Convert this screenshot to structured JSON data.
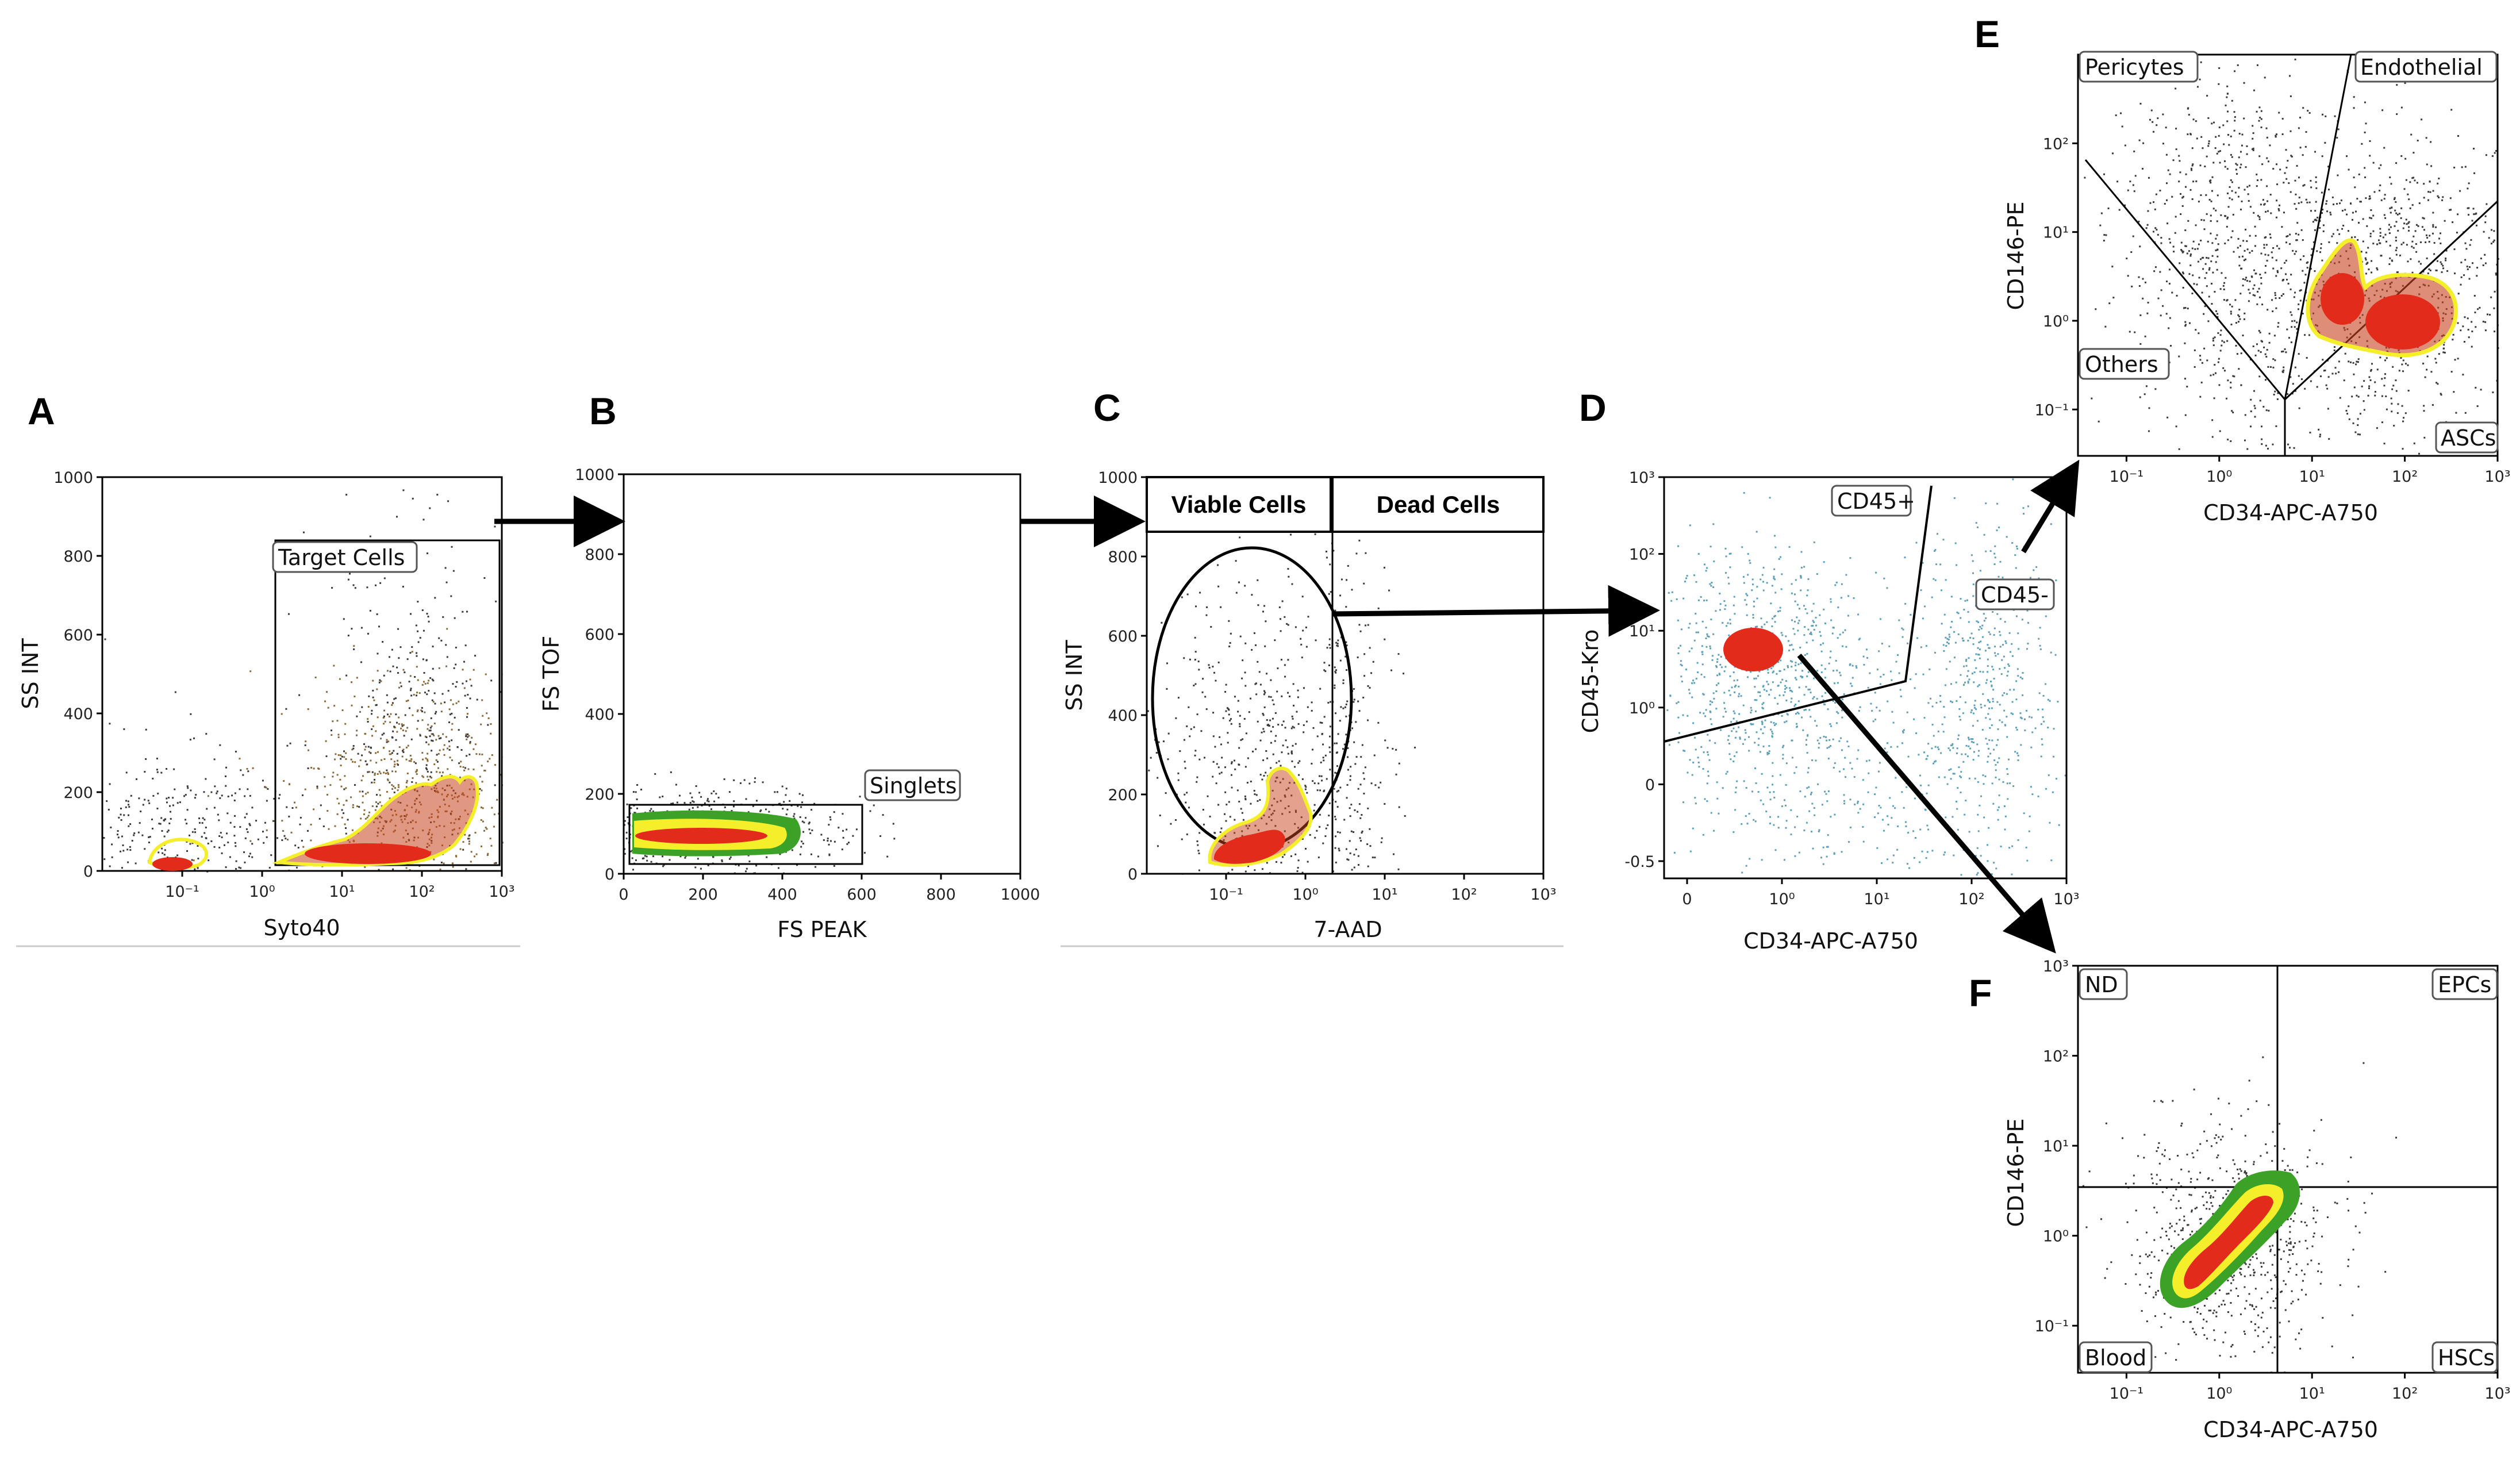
{
  "colors": {
    "density_low": "#3a3a3a",
    "density_mid": "#8a6a3a",
    "density_high": "#e32b1c",
    "contour_yellow": "#f4ef2a",
    "contour_green": "#3ca127",
    "cd45_scatter": "#5fa0b8"
  },
  "chart_data": [
    {
      "panel": "A",
      "type": "scatter",
      "title": "",
      "xlabel": "Syto40",
      "ylabel": "SS INT",
      "x_scale": "log",
      "x_ticks": [
        "10⁻¹",
        "10⁰",
        "10¹",
        "10²",
        "10³"
      ],
      "x_tick_values": [
        0.1,
        1,
        10,
        100,
        1000
      ],
      "y_ticks": [
        "0",
        "200",
        "400",
        "600",
        "800",
        "1000"
      ],
      "y_tick_values": [
        0,
        200,
        400,
        600,
        800,
        1000
      ],
      "xlim": [
        0.01,
        1000
      ],
      "ylim": [
        0,
        1000
      ],
      "gates": [
        {
          "label": "Target Cells",
          "shape": "rectangle",
          "x_range": [
            1.3,
            1000
          ],
          "y_range": [
            0,
            840
          ]
        }
      ],
      "populations": [
        {
          "center": [
            0.07,
            20
          ],
          "spread": [
            0.35,
            20
          ],
          "density": "high"
        },
        {
          "center": [
            40,
            80
          ],
          "spread": [
            0.5,
            80
          ],
          "density": "high"
        }
      ]
    },
    {
      "panel": "B",
      "type": "scatter",
      "title": "",
      "xlabel": "FS PEAK",
      "ylabel": "FS TOF",
      "x_ticks": [
        "0",
        "200",
        "400",
        "600",
        "800",
        "1000"
      ],
      "x_tick_values": [
        0,
        200,
        400,
        600,
        800,
        1000
      ],
      "y_ticks": [
        "0",
        "200",
        "400",
        "600",
        "800",
        "1000"
      ],
      "y_tick_values": [
        0,
        200,
        400,
        600,
        800,
        1000
      ],
      "xlim": [
        0,
        1000
      ],
      "ylim": [
        0,
        1000
      ],
      "gates": [
        {
          "label": "Singlets",
          "shape": "rectangle",
          "x_range": [
            20,
            600
          ],
          "y_range": [
            30,
            180
          ]
        }
      ],
      "populations": [
        {
          "center": [
            160,
            90
          ],
          "spread": [
            110,
            25
          ],
          "density": "high"
        }
      ]
    },
    {
      "panel": "C",
      "type": "scatter",
      "title": "",
      "xlabel": "7-AAD",
      "ylabel": "SS INT",
      "x_scale": "log",
      "x_ticks": [
        "10⁻¹",
        "10⁰",
        "10¹",
        "10²",
        "10³"
      ],
      "x_tick_values": [
        0.1,
        1,
        10,
        100,
        1000
      ],
      "y_ticks": [
        "0",
        "200",
        "400",
        "600",
        "800",
        "1000"
      ],
      "y_tick_values": [
        0,
        200,
        400,
        600,
        800,
        1000
      ],
      "xlim": [
        0.01,
        1000
      ],
      "ylim": [
        0,
        1000
      ],
      "gates": [
        {
          "label": "Viable Cells",
          "shape": "ellipse",
          "x_range": [
            0.01,
            2
          ],
          "y_range": [
            0,
            830
          ]
        },
        {
          "label": "Dead Cells",
          "shape": "rectangle",
          "x_range": [
            2,
            1000
          ],
          "y_range": [
            0,
            1000
          ]
        }
      ],
      "populations": [
        {
          "center": [
            0.25,
            80
          ],
          "spread": [
            0.4,
            90
          ],
          "density": "high"
        }
      ]
    },
    {
      "panel": "D",
      "type": "scatter",
      "title": "",
      "xlabel": "CD34-APC-A750",
      "ylabel": "CD45-Kro",
      "x_ticks": [
        "0",
        "10⁰",
        "10¹",
        "10²",
        "10³"
      ],
      "y_ticks": [
        "-0.5",
        "0",
        "10⁰",
        "10¹",
        "10²",
        "10³"
      ],
      "gates": [
        {
          "label": "CD45+",
          "shape": "polygon"
        },
        {
          "label": "CD45-",
          "shape": "polygon"
        }
      ],
      "populations": [
        {
          "center": [
            "0.3",
            "20"
          ],
          "density": "high"
        },
        {
          "center": [
            "300",
            "30"
          ],
          "density": "mid"
        }
      ]
    },
    {
      "panel": "E",
      "type": "scatter",
      "title": "",
      "xlabel": "CD34-APC-A750",
      "ylabel": "CD146-PE",
      "x_scale": "log",
      "y_scale": "log",
      "x_ticks": [
        "10⁻¹",
        "10⁰",
        "10¹",
        "10²",
        "10³"
      ],
      "x_tick_values": [
        0.1,
        1,
        10,
        100,
        1000
      ],
      "y_ticks": [
        "10⁻¹",
        "10⁰",
        "10¹",
        "10²"
      ],
      "y_tick_values": [
        0.1,
        1,
        10,
        100
      ],
      "xlim": [
        0.03,
        1000
      ],
      "ylim": [
        0.03,
        1000
      ],
      "gates": [
        {
          "label": "Pericytes",
          "shape": "polygon"
        },
        {
          "label": "Endothelial",
          "shape": "polygon"
        },
        {
          "label": "Others",
          "shape": "polygon"
        },
        {
          "label": "ASCs",
          "shape": "polygon"
        }
      ],
      "populations": [
        {
          "center": [
            20,
            1
          ],
          "density": "high"
        },
        {
          "center": [
            150,
            0.4
          ],
          "density": "high"
        },
        {
          "center": [
            0.8,
            20
          ],
          "density": "mid"
        }
      ]
    },
    {
      "panel": "F",
      "type": "scatter",
      "title": "",
      "xlabel": "CD34-APC-A750",
      "ylabel": "CD146-PE",
      "x_scale": "log",
      "y_scale": "log",
      "x_ticks": [
        "10⁻¹",
        "10⁰",
        "10¹",
        "10²",
        "10³"
      ],
      "x_tick_values": [
        0.1,
        1,
        10,
        100,
        1000
      ],
      "y_ticks": [
        "10⁻¹",
        "10⁰",
        "10¹",
        "10²",
        "10³"
      ],
      "y_tick_values": [
        0.1,
        1,
        10,
        100,
        1000
      ],
      "xlim": [
        0.03,
        1000
      ],
      "ylim": [
        0.03,
        1000
      ],
      "gates": [
        {
          "label": "ND",
          "quadrant": "top-left"
        },
        {
          "label": "EPCs",
          "quadrant": "top-right"
        },
        {
          "label": "Blood",
          "quadrant": "bottom-left"
        },
        {
          "label": "HSCs",
          "quadrant": "bottom-right"
        }
      ],
      "quadrant_split": {
        "x": 2,
        "y": 2
      },
      "populations": [
        {
          "center": [
            0.8,
            0.8
          ],
          "density": "high"
        }
      ]
    }
  ]
}
